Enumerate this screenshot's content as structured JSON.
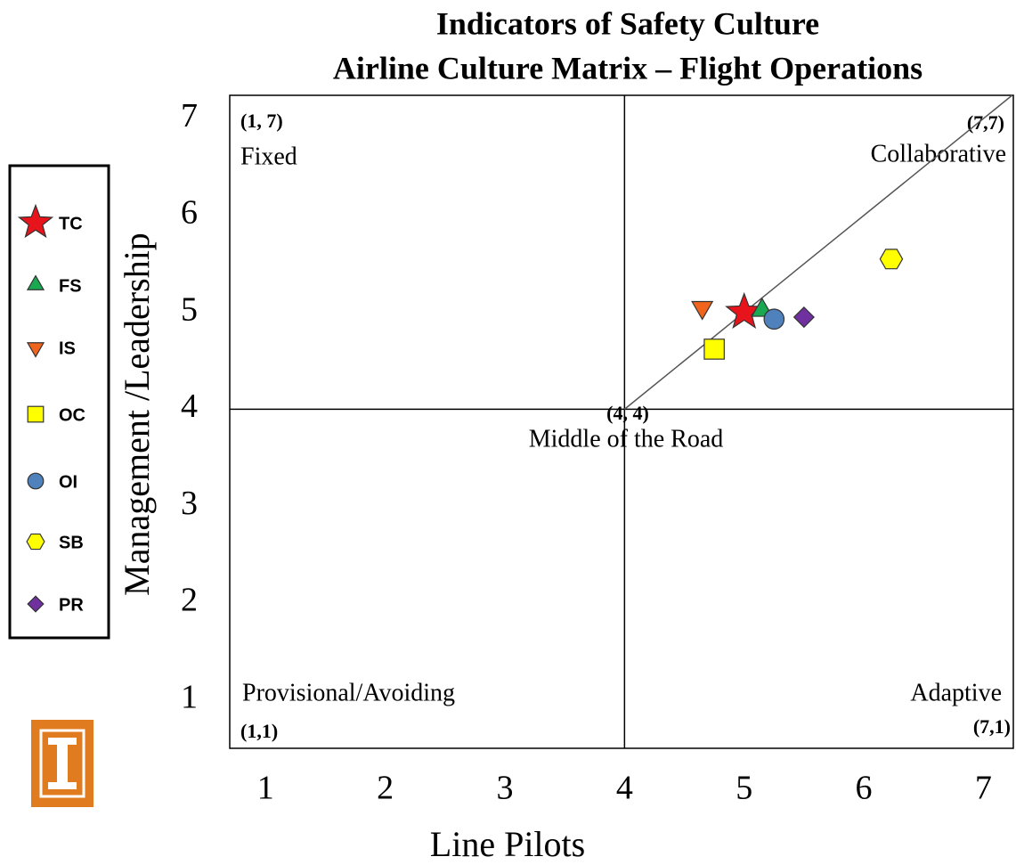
{
  "chart_data": {
    "type": "scatter",
    "title": [
      "Indicators of Safety Culture",
      "Airline Culture Matrix – Flight Operations"
    ],
    "xlabel": "Line Pilots",
    "ylabel": "Management  /Leadership",
    "xlim": [
      0.7,
      7.25
    ],
    "ylim": [
      0.5,
      7.24
    ],
    "xticks": [
      1,
      2,
      3,
      4,
      5,
      6,
      7
    ],
    "yticks": [
      1,
      2,
      3,
      4,
      5,
      6,
      7
    ],
    "center": {
      "x": 4,
      "y": 4
    },
    "annotations": [
      "(1, 7)",
      "Fixed",
      "(7,7)",
      "Collaborative",
      "(4, 4)",
      "Middle of the Road",
      "Provisional/Avoiding",
      "(1,1)",
      "Adaptive",
      "(7,1)"
    ],
    "series": [
      {
        "name": "TC",
        "color": "#e8141b",
        "marker": "star",
        "x": [
          5.0
        ],
        "values": [
          5.0
        ]
      },
      {
        "name": "FS",
        "color": "#1aa850",
        "marker": "triangle",
        "x": [
          5.15
        ],
        "values": [
          5.02
        ]
      },
      {
        "name": "IS",
        "color": "#f0641e",
        "marker": "triangle-down",
        "x": [
          4.65
        ],
        "values": [
          5.05
        ]
      },
      {
        "name": "OC",
        "color": "#ffff00",
        "marker": "square",
        "x": [
          4.75
        ],
        "values": [
          4.62
        ]
      },
      {
        "name": "OI",
        "color": "#4f81bd",
        "marker": "circle",
        "x": [
          5.25
        ],
        "values": [
          4.93
        ]
      },
      {
        "name": "SB",
        "color": "#ffff00",
        "marker": "hexagon",
        "x": [
          6.23
        ],
        "values": [
          5.55
        ]
      },
      {
        "name": "PR",
        "color": "#7030a0",
        "marker": "diamond",
        "x": [
          5.5
        ],
        "values": [
          4.95
        ]
      }
    ]
  }
}
